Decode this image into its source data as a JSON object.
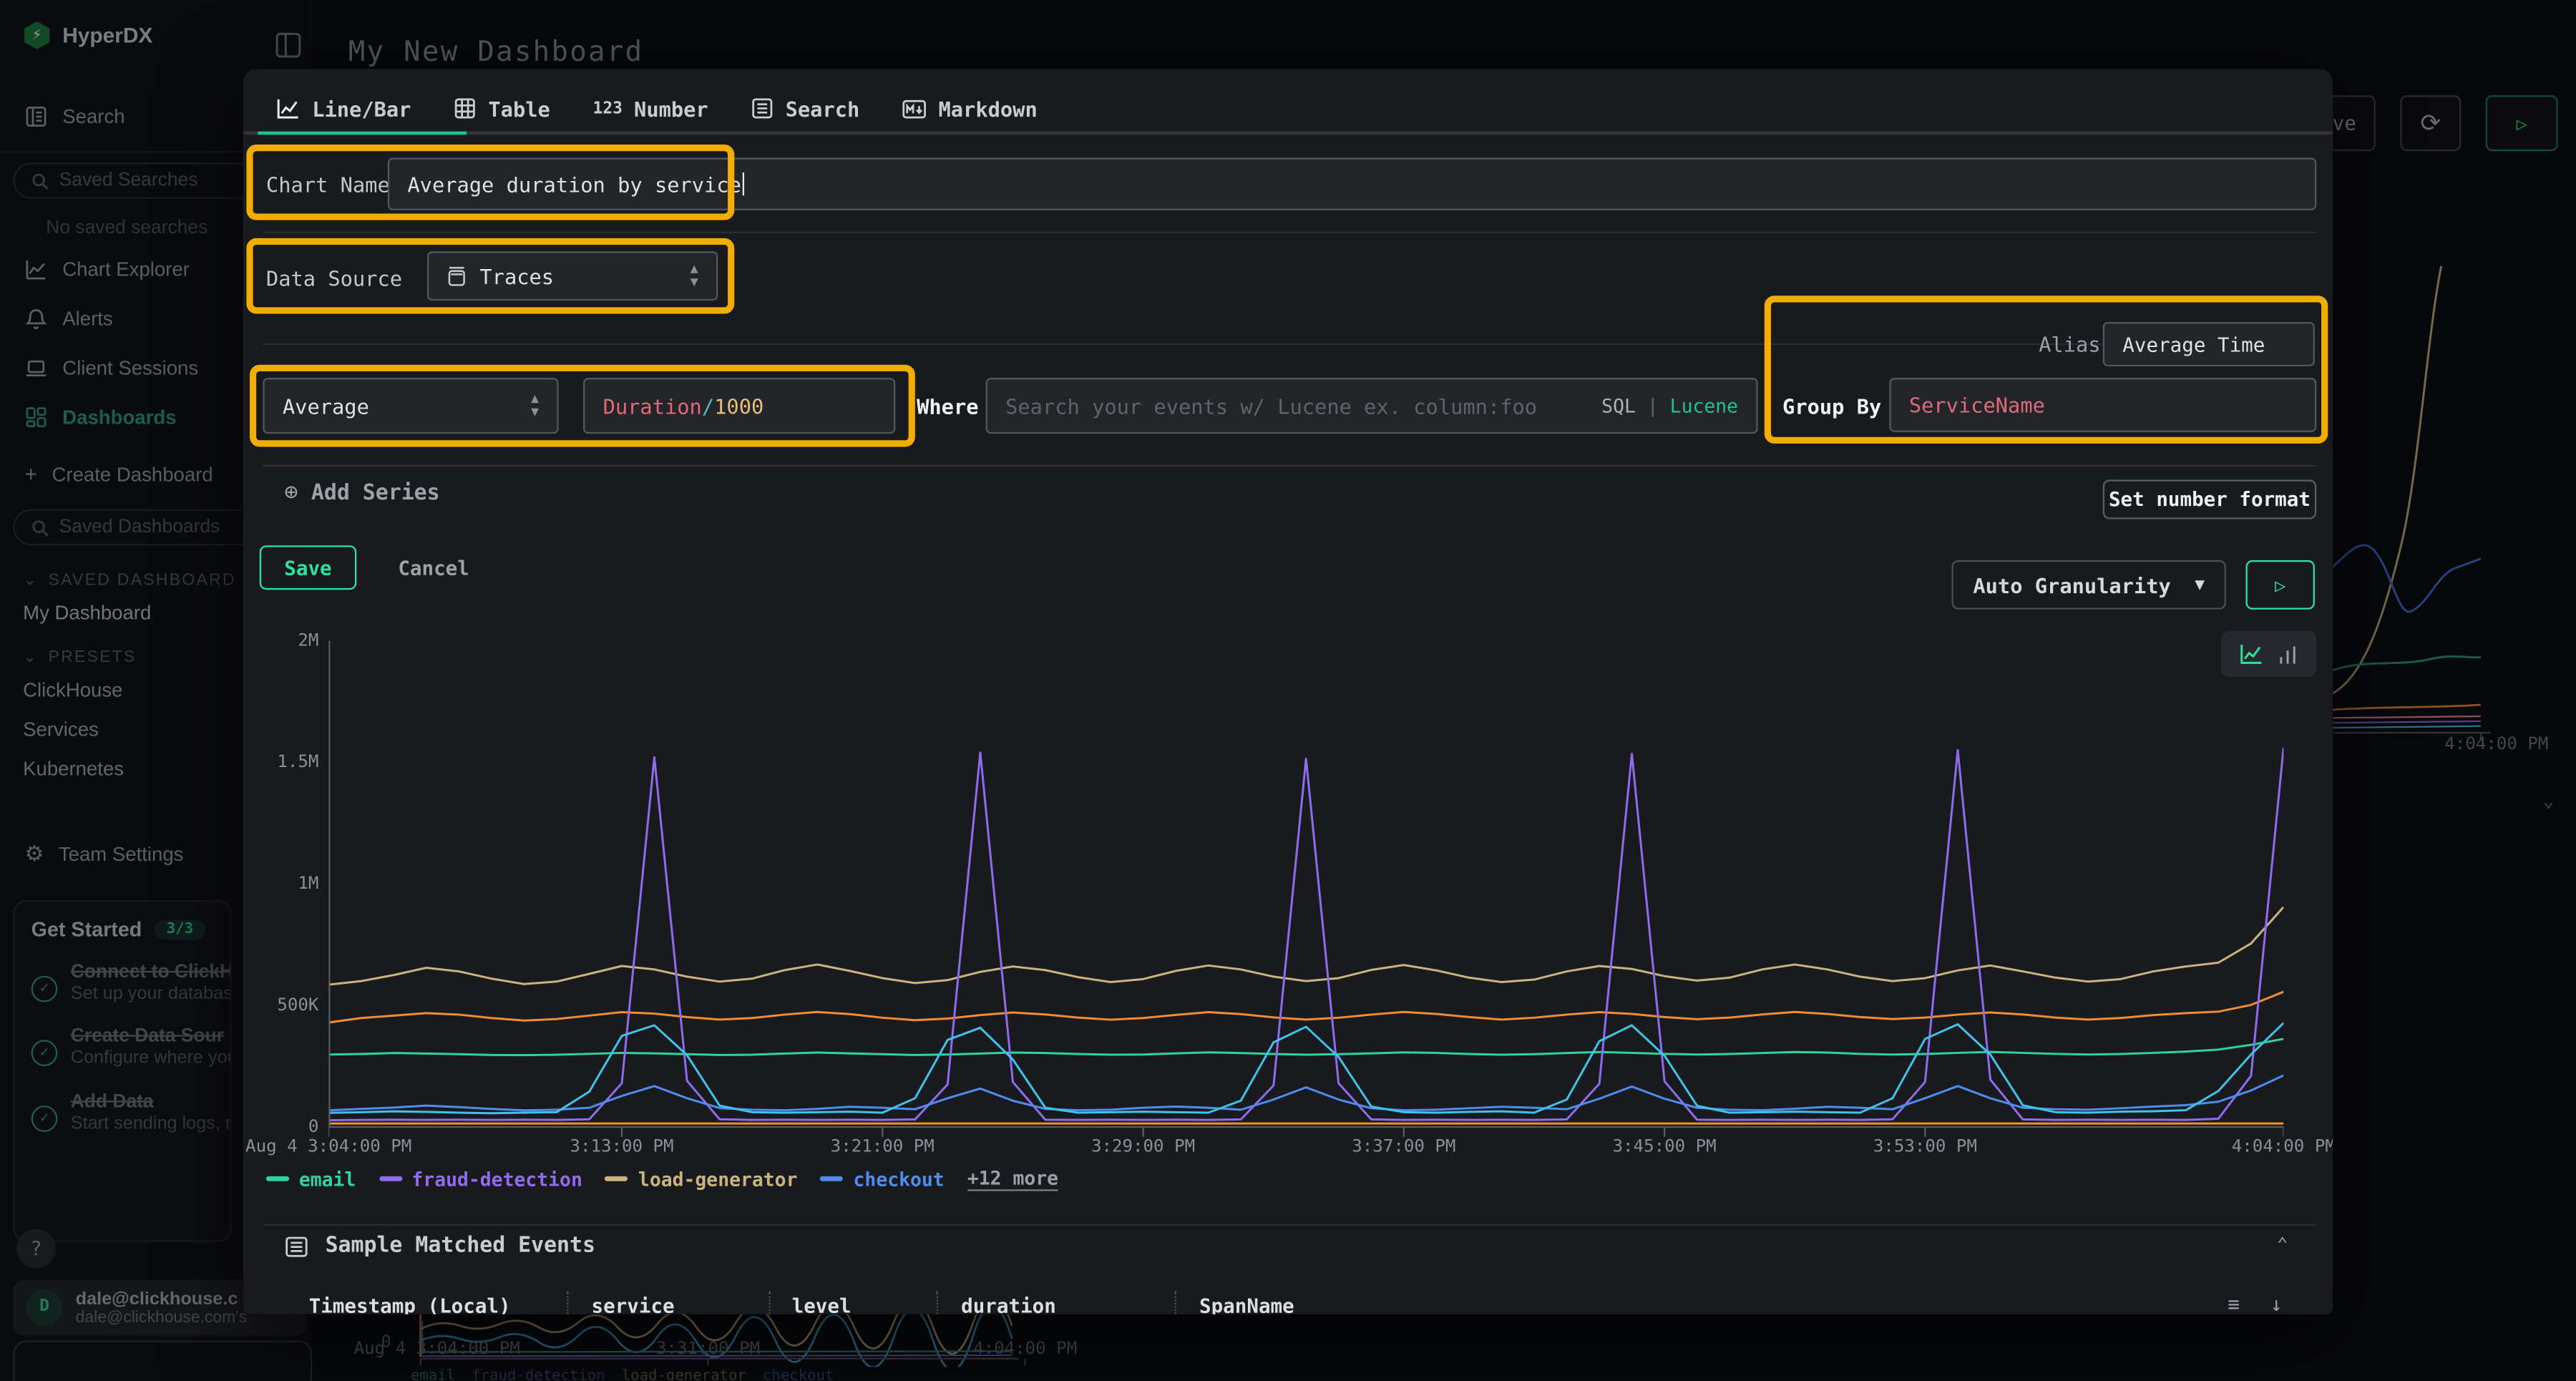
{
  "colors": {
    "accent": "#1ec28b",
    "accent_bright": "#2be39e",
    "highlight": "#f2ae00",
    "syntax_red": "#e0697a",
    "syntax_cyan": "#56b6c2",
    "syntax_yellow": "#e3bf7c"
  },
  "app": {
    "brand": "HyperDX",
    "page_title": "My New Dashboard"
  },
  "sidebar": {
    "items": [
      {
        "label": "Search"
      },
      {
        "label": "Chart Explorer"
      },
      {
        "label": "Alerts"
      },
      {
        "label": "Client Sessions"
      },
      {
        "label": "Dashboards"
      }
    ],
    "saved_searches_placeholder": "Saved Searches",
    "no_saved_searches": "No saved searches",
    "create_dashboard": "Create Dashboard",
    "create_dashboard_plus": "+",
    "saved_dashboards_placeholder": "Saved Dashboards",
    "saved_dashboards_section": "SAVED DASHBOARD",
    "my_dashboard": "My Dashboard",
    "presets_section": "PRESETS",
    "presets": [
      "ClickHouse",
      "Services",
      "Kubernetes"
    ],
    "team_settings": "Team Settings",
    "get_started": {
      "title": "Get Started",
      "badge": "3/3",
      "items": [
        {
          "title": "Connect to ClickHouse",
          "subtitle": "Set up your database connection"
        },
        {
          "title": "Create Data Sour",
          "subtitle": "Configure where your data comes from"
        },
        {
          "title": "Add Data",
          "subtitle": "Start sending logs, metrics, or traces"
        }
      ]
    },
    "help_label": "?",
    "user": {
      "avatar": "D",
      "name": "dale@clickhouse.c",
      "detail": "dale@clickhouse.com's"
    }
  },
  "background": {
    "top_save_partial": "ve",
    "right_chart_x_tick": "4:04:00 PM",
    "bottom_chart": {
      "y_tick": "0",
      "x_ticks": [
        "Aug 4 3:04:00 PM",
        "3:31:00 PM",
        "4:04:00 PM"
      ],
      "legend": [
        "email",
        "fraud-detection",
        "load-generator",
        "checkout"
      ]
    }
  },
  "modal": {
    "tabs": [
      {
        "label": "Line/Bar",
        "active": true
      },
      {
        "label": "Table"
      },
      {
        "label": "Number",
        "icon_text": "123"
      },
      {
        "label": "Search"
      },
      {
        "label": "Markdown"
      }
    ],
    "chart_name": {
      "label": "Chart Name",
      "value": "Average duration by service"
    },
    "data_source": {
      "label": "Data Source",
      "value": "Traces"
    },
    "series_editor": {
      "aggregation": "Average",
      "field_tokens": [
        {
          "text": "Duration",
          "color": "#e0697a"
        },
        {
          "text": "/",
          "color": "#56b6c2"
        },
        {
          "text": "1000",
          "color": "#e3bf7c"
        }
      ],
      "where_label": "Where",
      "where_placeholder": "Search your events w/ Lucene ex. column:foo",
      "lang_sql": "SQL",
      "lang_sep": "|",
      "lang_lucene": "Lucene",
      "alias_label": "Alias",
      "alias_value": "Average Time",
      "group_by_label": "Group By",
      "group_by_value": "ServiceName"
    },
    "add_series": "Add Series",
    "set_number_format": "Set number format",
    "save": "Save",
    "cancel": "Cancel",
    "granularity": "Auto Granularity",
    "sample_events": {
      "title": "Sample Matched Events",
      "columns": [
        "Timestamp (Local)",
        "service",
        "level",
        "duration",
        "SpanName"
      ]
    }
  },
  "chart_data": {
    "type": "line",
    "title": "Average duration by service",
    "ylabel": "",
    "xlabel": "",
    "ylim": [
      0,
      2000000
    ],
    "values_unit": "thousands",
    "x_range_minutes": 60,
    "grid": false,
    "y_ticks": [
      "2M",
      "1.5M",
      "1M",
      "500K",
      "0"
    ],
    "x_ticks": [
      {
        "label": "Aug 4 3:04:00 PM",
        "min": 0
      },
      {
        "label": "3:13:00 PM",
        "min": 9
      },
      {
        "label": "3:21:00 PM",
        "min": 17
      },
      {
        "label": "3:29:00 PM",
        "min": 25
      },
      {
        "label": "3:37:00 PM",
        "min": 33
      },
      {
        "label": "3:45:00 PM",
        "min": 41
      },
      {
        "label": "3:53:00 PM",
        "min": 49
      },
      {
        "label": "4:04:00 PM",
        "min": 60
      }
    ],
    "legend": [
      {
        "label": "email",
        "color": "#2dd4a0"
      },
      {
        "label": "fraud-detection",
        "color": "#8f6bf0"
      },
      {
        "label": "load-generator",
        "color": "#c9b37e"
      },
      {
        "label": "checkout",
        "color": "#4d8df0"
      }
    ],
    "legend_more": "+12 more",
    "series": [
      {
        "name": "load-generator",
        "color": "#c9b37e",
        "values": [
          585,
          600,
          625,
          655,
          640,
          610,
          588,
          598,
          630,
          662,
          648,
          618,
          598,
          610,
          645,
          668,
          642,
          612,
          592,
          604,
          638,
          660,
          645,
          616,
          596,
          608,
          642,
          664,
          648,
          618,
          600,
          612,
          646,
          666,
          644,
          614,
          596,
          606,
          640,
          662,
          650,
          620,
          602,
          614,
          648,
          668,
          648,
          618,
          600,
          612,
          644,
          664,
          640,
          614,
          598,
          608,
          640,
          660,
          676,
          755,
          905
        ]
      },
      {
        "name": "unlabeled-1",
        "color": "#ef8d35",
        "values": [
          430,
          448,
          458,
          468,
          462,
          448,
          438,
          444,
          458,
          472,
          466,
          452,
          442,
          448,
          462,
          473,
          464,
          449,
          439,
          446,
          460,
          471,
          463,
          450,
          441,
          448,
          461,
          472,
          464,
          451,
          442,
          449,
          462,
          473,
          465,
          452,
          442,
          449,
          462,
          472,
          465,
          452,
          443,
          450,
          463,
          473,
          465,
          452,
          444,
          450,
          462,
          471,
          463,
          450,
          442,
          448,
          460,
          468,
          474,
          502,
          556
        ]
      },
      {
        "name": "email",
        "color": "#2dd4a0",
        "values": [
          298,
          300,
          304,
          302,
          299,
          296,
          295,
          297,
          301,
          305,
          303,
          299,
          296,
          297,
          302,
          306,
          303,
          299,
          296,
          298,
          302,
          306,
          304,
          300,
          297,
          298,
          303,
          307,
          304,
          300,
          297,
          299,
          303,
          307,
          305,
          300,
          297,
          299,
          304,
          308,
          305,
          301,
          298,
          300,
          304,
          308,
          306,
          301,
          298,
          300,
          305,
          309,
          305,
          301,
          298,
          300,
          305,
          310,
          318,
          338,
          362
        ]
      },
      {
        "name": "fraud-detection",
        "color": "#8f6bf0",
        "values": [
          28,
          29,
          30,
          29,
          30,
          29,
          30,
          29,
          32,
          180,
          1520,
          190,
          32,
          29,
          30,
          29,
          30,
          29,
          31,
          175,
          1540,
          185,
          30,
          29,
          30,
          29,
          30,
          29,
          31,
          170,
          1515,
          180,
          31,
          29,
          30,
          29,
          30,
          29,
          31,
          178,
          1535,
          188,
          30,
          29,
          30,
          29,
          30,
          29,
          32,
          185,
          1550,
          195,
          31,
          29,
          30,
          29,
          30,
          29,
          34,
          210,
          1560
        ]
      },
      {
        "name": "checkout",
        "color": "#4d8df0",
        "values": [
          68,
          74,
          80,
          88,
          82,
          74,
          68,
          71,
          79,
          128,
          168,
          118,
          78,
          71,
          69,
          74,
          83,
          79,
          73,
          118,
          158,
          108,
          74,
          69,
          71,
          79,
          84,
          79,
          71,
          113,
          163,
          113,
          77,
          69,
          71,
          77,
          83,
          79,
          73,
          116,
          166,
          116,
          79,
          71,
          69,
          75,
          83,
          79,
          73,
          118,
          168,
          118,
          79,
          73,
          71,
          77,
          84,
          90,
          104,
          150,
          212
        ]
      },
      {
        "name": "unlabeled-2",
        "color": "#3fc3ea",
        "values": [
          58,
          61,
          64,
          62,
          59,
          57,
          59,
          61,
          145,
          375,
          418,
          295,
          88,
          61,
          59,
          61,
          63,
          59,
          118,
          358,
          408,
          278,
          79,
          59,
          61,
          63,
          61,
          59,
          108,
          348,
          412,
          288,
          84,
          61,
          59,
          62,
          64,
          59,
          113,
          353,
          418,
          293,
          87,
          59,
          61,
          63,
          61,
          59,
          118,
          362,
          422,
          298,
          89,
          61,
          59,
          63,
          65,
          69,
          148,
          298,
          428
        ]
      },
      {
        "name": "unlabeled-3",
        "color": "#f59422",
        "values": [
          14,
          14,
          14,
          14,
          14,
          14,
          14,
          14,
          14,
          14,
          14,
          14,
          14,
          14,
          14,
          14,
          14,
          14,
          14,
          14,
          14,
          14,
          14,
          14,
          14,
          14,
          14,
          14,
          14,
          14,
          14,
          14,
          14,
          14,
          14,
          14,
          14,
          14,
          14,
          14,
          14,
          14,
          14,
          14,
          14,
          14,
          14,
          14,
          14,
          14,
          14,
          14,
          14,
          14,
          14,
          14,
          14,
          14,
          14,
          14,
          14
        ]
      }
    ]
  }
}
